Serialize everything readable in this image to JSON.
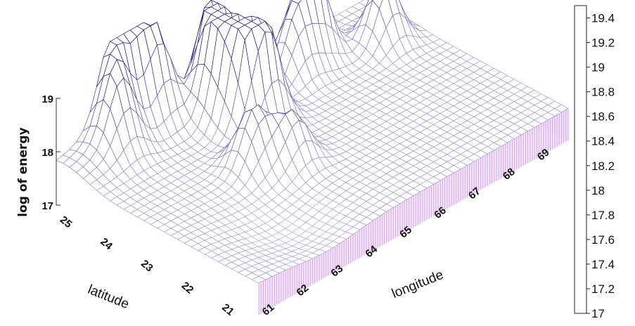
{
  "chart_data": {
    "type": "surface3d",
    "title": "",
    "xlabel": "longitude",
    "ylabel": "latitude",
    "zlabel": "log of energy",
    "x_ticks": [
      "61",
      "62",
      "63",
      "64",
      "65",
      "66",
      "67",
      "68",
      "69"
    ],
    "y_ticks": [
      "21",
      "22",
      "23",
      "24",
      "25"
    ],
    "z_ticks": [
      "17",
      "18",
      "19"
    ],
    "xlim": [
      60.5,
      69.5
    ],
    "ylim": [
      20.5,
      25.5
    ],
    "zlim": [
      17,
      19.5
    ],
    "colorbar_ticks": [
      "17",
      "17.2",
      "17.4",
      "17.6",
      "17.8",
      "18",
      "18.2",
      "18.4",
      "18.6",
      "18.8",
      "19",
      "19.2",
      "19.4"
    ],
    "colorbar_range": [
      17,
      19.5
    ],
    "colormap": {
      "low": "#ece9fb",
      "high": "#2a1380"
    },
    "baseline": 17.6,
    "peaks": [
      {
        "longitude": 63.2,
        "latitude": 25.3,
        "z": 19.0
      },
      {
        "longitude": 62.2,
        "latitude": 25.6,
        "z": 19.1
      },
      {
        "longitude": 62.8,
        "latitude": 25.6,
        "z": 18.9
      },
      {
        "longitude": 61.8,
        "latitude": 25.1,
        "z": 18.8
      },
      {
        "longitude": 64.2,
        "latitude": 24.7,
        "z": 19.3
      },
      {
        "longitude": 64.4,
        "latitude": 24.2,
        "z": 19.5
      },
      {
        "longitude": 64.6,
        "latitude": 25.1,
        "z": 19.3
      },
      {
        "longitude": 64.8,
        "latitude": 24.0,
        "z": 19.2
      },
      {
        "longitude": 63.5,
        "latitude": 23.2,
        "z": 18.7
      },
      {
        "longitude": 64.2,
        "latitude": 22.8,
        "z": 18.5
      },
      {
        "longitude": 66.5,
        "latitude": 24.7,
        "z": 18.7
      },
      {
        "longitude": 67.2,
        "latitude": 24.9,
        "z": 19.4
      },
      {
        "longitude": 68.6,
        "latitude": 24.3,
        "z": 18.8
      }
    ]
  }
}
